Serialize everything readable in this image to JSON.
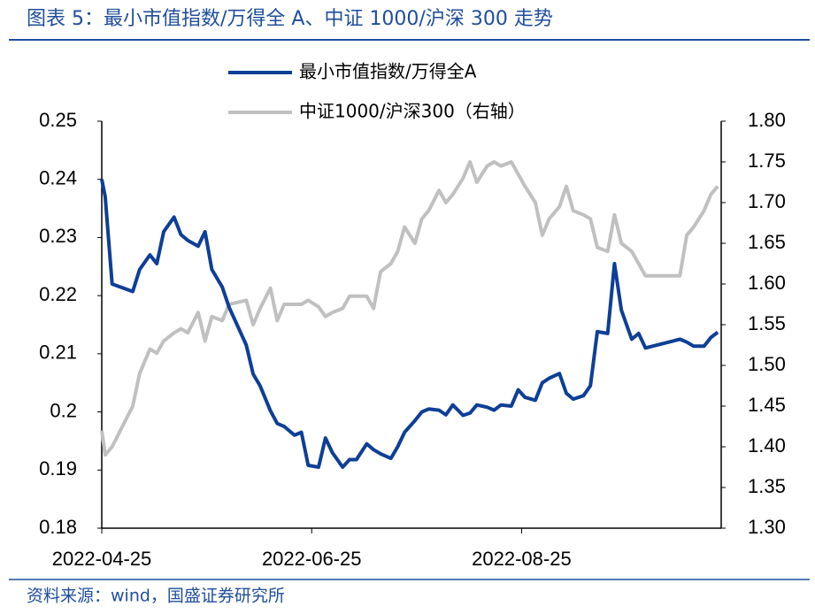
{
  "chart_data": {
    "type": "line",
    "title": "图表 5：最小市值指数/万得全 A、中证 1000/沪深 300 走势",
    "source": "资料来源：wind，国盛证券研究所",
    "x": [
      "2022-04-25",
      "2022-04-26",
      "2022-04-28",
      "2022-05-04",
      "2022-05-06",
      "2022-05-09",
      "2022-05-11",
      "2022-05-13",
      "2022-05-16",
      "2022-05-18",
      "2022-05-20",
      "2022-05-23",
      "2022-05-25",
      "2022-05-27",
      "2022-05-30",
      "2022-06-01",
      "2022-06-06",
      "2022-06-08",
      "2022-06-10",
      "2022-06-13",
      "2022-06-15",
      "2022-06-17",
      "2022-06-20",
      "2022-06-22",
      "2022-06-24",
      "2022-06-27",
      "2022-06-29",
      "2022-07-01",
      "2022-07-04",
      "2022-07-06",
      "2022-07-08",
      "2022-07-11",
      "2022-07-13",
      "2022-07-15",
      "2022-07-18",
      "2022-07-20",
      "2022-07-22",
      "2022-07-25",
      "2022-07-27",
      "2022-07-29",
      "2022-08-01",
      "2022-08-03",
      "2022-08-05",
      "2022-08-08",
      "2022-08-10",
      "2022-08-12",
      "2022-08-15",
      "2022-08-17",
      "2022-08-19",
      "2022-08-22",
      "2022-08-24",
      "2022-08-26",
      "2022-08-29",
      "2022-08-31",
      "2022-09-02",
      "2022-09-05",
      "2022-09-07",
      "2022-09-09",
      "2022-09-12",
      "2022-09-14",
      "2022-09-16",
      "2022-09-19",
      "2022-09-21",
      "2022-09-23",
      "2022-09-26",
      "2022-09-28",
      "2022-09-30",
      "2022-10-08",
      "2022-10-10",
      "2022-10-12",
      "2022-10-14",
      "2022-10-17",
      "2022-10-19",
      "2022-10-21"
    ],
    "series": [
      {
        "name": "最小市值指数/万得全A",
        "color": "#0e3f97",
        "axis": "y",
        "values": [
          0.24,
          0.237,
          0.222,
          0.2207,
          0.2245,
          0.227,
          0.2255,
          0.231,
          0.2335,
          0.2305,
          0.2295,
          0.2285,
          0.231,
          0.2245,
          0.2215,
          0.218,
          0.2115,
          0.2065,
          0.2045,
          0.2002,
          0.198,
          0.1975,
          0.196,
          0.1965,
          0.1908,
          0.1905,
          0.1955,
          0.193,
          0.1905,
          0.1918,
          0.1918,
          0.1945,
          0.1935,
          0.1928,
          0.192,
          0.194,
          0.1965,
          0.1985,
          0.2,
          0.2005,
          0.2003,
          0.1995,
          0.2012,
          0.1994,
          0.1998,
          0.2012,
          0.2008,
          0.2003,
          0.2012,
          0.201,
          0.2038,
          0.2025,
          0.202,
          0.205,
          0.2058,
          0.2066,
          0.2032,
          0.2022,
          0.2028,
          0.2045,
          0.2138,
          0.2135,
          0.2255,
          0.2175,
          0.2125,
          0.2135,
          0.211,
          0.2122,
          0.2125,
          0.212,
          0.2113,
          0.2113,
          0.2128,
          0.2137
        ]
      },
      {
        "name": "中证1000/沪深300（右轴）",
        "color": "#c0c0c0",
        "axis": "y2",
        "values": [
          1.42,
          1.39,
          1.4,
          1.45,
          1.49,
          1.52,
          1.515,
          1.53,
          1.54,
          1.545,
          1.54,
          1.565,
          1.53,
          1.56,
          1.555,
          1.575,
          1.58,
          1.55,
          1.57,
          1.595,
          1.555,
          1.575,
          1.575,
          1.575,
          1.58,
          1.572,
          1.56,
          1.565,
          1.57,
          1.585,
          1.585,
          1.585,
          1.57,
          1.615,
          1.625,
          1.64,
          1.67,
          1.65,
          1.68,
          1.69,
          1.715,
          1.7,
          1.71,
          1.73,
          1.75,
          1.725,
          1.745,
          1.75,
          1.745,
          1.75,
          1.735,
          1.72,
          1.7,
          1.66,
          1.68,
          1.695,
          1.72,
          1.69,
          1.685,
          1.68,
          1.645,
          1.64,
          1.685,
          1.65,
          1.64,
          1.625,
          1.61,
          1.61,
          1.61,
          1.66,
          1.67,
          1.69,
          1.71,
          1.72
        ]
      }
    ],
    "xlim": [
      "2022-04-25",
      "2022-10-22"
    ],
    "xticks": [
      "2022-04-25",
      "2022-06-25",
      "2022-08-25"
    ],
    "ylim": [
      0.18,
      0.25
    ],
    "yticks": [
      0.18,
      0.19,
      0.2,
      0.21,
      0.22,
      0.23,
      0.24,
      0.25
    ],
    "y2lim": [
      1.3,
      1.8
    ],
    "y2ticks": [
      {
        "value": 1.3,
        "label": "1.30"
      },
      {
        "value": 1.35,
        "label": "1.35"
      },
      {
        "value": 1.4,
        "label": "1.40"
      },
      {
        "value": 1.45,
        "label": "1.45"
      },
      {
        "value": 1.5,
        "label": "1.50"
      },
      {
        "value": 1.55,
        "label": "1.55"
      },
      {
        "value": 1.6,
        "label": "1.60"
      },
      {
        "value": 1.65,
        "label": "1.65"
      },
      {
        "value": 1.7,
        "label": "1.70"
      },
      {
        "value": 1.75,
        "label": "1.75"
      },
      {
        "value": 1.8,
        "label": "1.80"
      }
    ],
    "legend": "top"
  }
}
